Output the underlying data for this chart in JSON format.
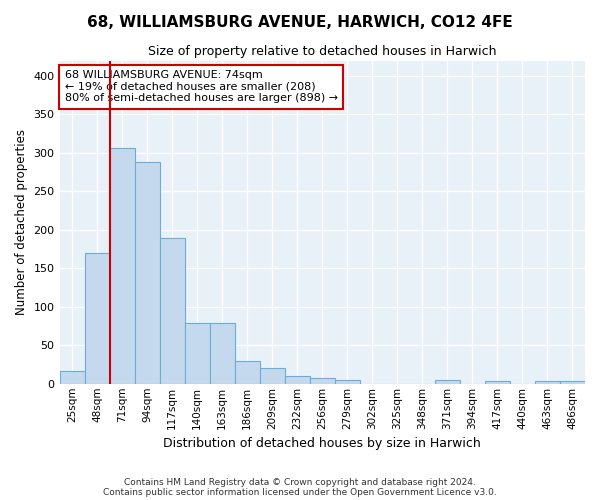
{
  "title1": "68, WILLIAMSBURG AVENUE, HARWICH, CO12 4FE",
  "title2": "Size of property relative to detached houses in Harwich",
  "xlabel": "Distribution of detached houses by size in Harwich",
  "ylabel": "Number of detached properties",
  "footer1": "Contains HM Land Registry data © Crown copyright and database right 2024.",
  "footer2": "Contains public sector information licensed under the Open Government Licence v3.0.",
  "bar_color": "#c5d9ee",
  "bar_edge_color": "#6aaed6",
  "background_color": "#e8f0f8",
  "grid_color": "#ffffff",
  "annotation_box_color": "#ffffff",
  "annotation_border_color": "#cc0000",
  "vline_color": "#cc0000",
  "categories": [
    "25sqm",
    "48sqm",
    "71sqm",
    "94sqm",
    "117sqm",
    "140sqm",
    "163sqm",
    "186sqm",
    "209sqm",
    "232sqm",
    "256sqm",
    "279sqm",
    "302sqm",
    "325sqm",
    "348sqm",
    "371sqm",
    "394sqm",
    "417sqm",
    "440sqm",
    "463sqm",
    "486sqm"
  ],
  "values": [
    17,
    170,
    307,
    288,
    190,
    79,
    79,
    30,
    20,
    10,
    8,
    5,
    0,
    0,
    0,
    5,
    0,
    3,
    0,
    3,
    3
  ],
  "property_label": "68 WILLIAMSBURG AVENUE: 74sqm",
  "pct_smaller": "19%",
  "n_smaller": 208,
  "pct_larger_semi": "80%",
  "n_larger_semi": 898,
  "vline_x_idx": 2,
  "ylim": [
    0,
    420
  ],
  "yticks": [
    0,
    50,
    100,
    150,
    200,
    250,
    300,
    350,
    400
  ]
}
